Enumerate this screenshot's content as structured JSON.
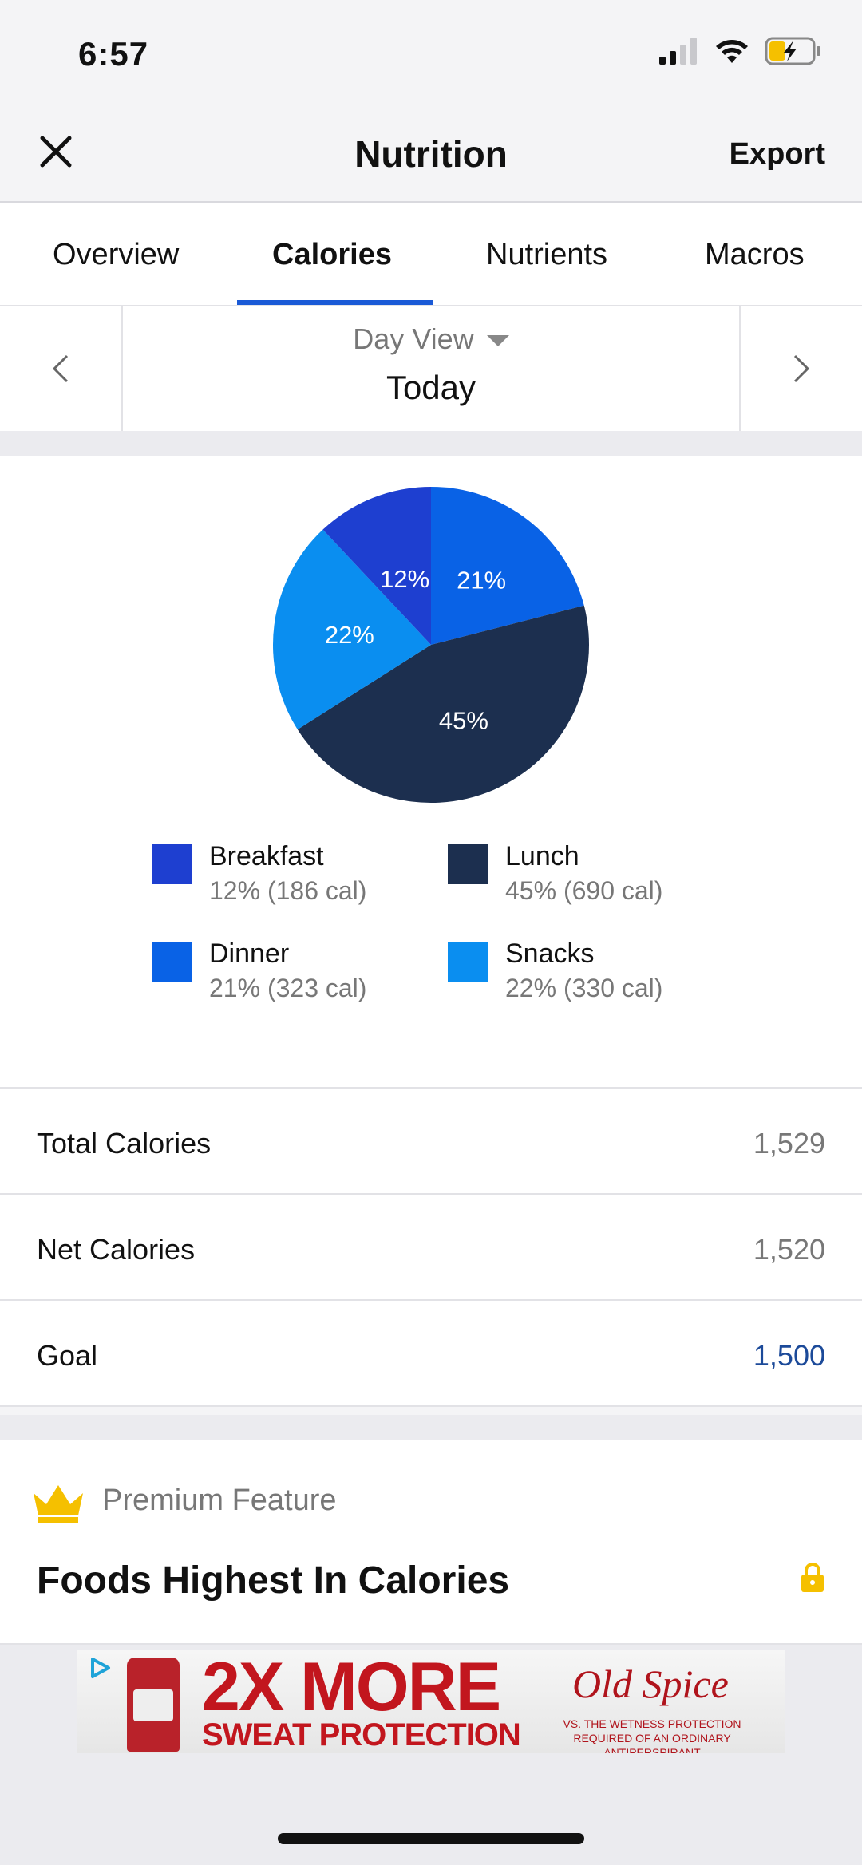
{
  "status_bar": {
    "time": "6:57"
  },
  "nav": {
    "title": "Nutrition",
    "export_label": "Export"
  },
  "tabs": [
    {
      "label": "Overview",
      "active": false
    },
    {
      "label": "Calories",
      "active": true
    },
    {
      "label": "Nutrients",
      "active": false
    },
    {
      "label": "Macros",
      "active": false
    }
  ],
  "day_selector": {
    "view_label": "Day View",
    "value": "Today"
  },
  "chart_data": {
    "type": "pie",
    "categories": [
      "Breakfast",
      "Lunch",
      "Dinner",
      "Snacks"
    ],
    "values": [
      12,
      45,
      21,
      22
    ],
    "calories": [
      186,
      690,
      323,
      330
    ],
    "slice_labels": [
      "12%",
      "45%",
      "21%",
      "22%"
    ],
    "colors": [
      "#1e3fd0",
      "#1c2f4f",
      "#0962e6",
      "#0a8ef0"
    ],
    "legend": [
      {
        "name": "Breakfast",
        "detail": "12% (186 cal)",
        "color": "#1e3fd0"
      },
      {
        "name": "Lunch",
        "detail": "45% (690 cal)",
        "color": "#1c2f4f"
      },
      {
        "name": "Dinner",
        "detail": "21% (323 cal)",
        "color": "#0962e6"
      },
      {
        "name": "Snacks",
        "detail": "22% (330 cal)",
        "color": "#0a8ef0"
      }
    ]
  },
  "stats": {
    "total": {
      "label": "Total Calories",
      "value": "1,529"
    },
    "net": {
      "label": "Net Calories",
      "value": "1,520"
    },
    "goal": {
      "label": "Goal",
      "value": "1,500"
    }
  },
  "premium": {
    "badge_label": "Premium Feature",
    "title": "Foods Highest In Calories",
    "crown_icon": "crown-icon",
    "lock_icon": "lock-icon",
    "accent_color": "#f5c000"
  },
  "ad": {
    "headline": "2X MORE",
    "subline": "SWEAT PROTECTION",
    "brand": "Old Spice",
    "fine_print": "VS. THE WETNESS PROTECTION REQUIRED OF AN ORDINARY ANTIPERSPIRANT"
  }
}
